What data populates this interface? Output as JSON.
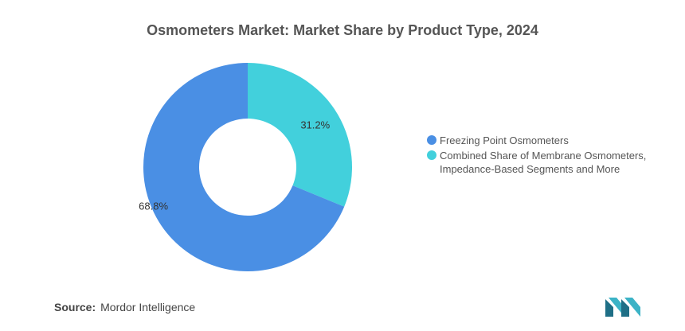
{
  "chart_data": {
    "type": "pie",
    "donut": true,
    "title": "Osmometers Market: Market Share by Product Type, 2024",
    "categories": [
      "Freezing Point Osmometers",
      "Combined Share of Membrane Osmometers, Impedance-Based Segments and More"
    ],
    "values": [
      68.8,
      31.2
    ],
    "value_labels": [
      "68.8%",
      "31.2%"
    ],
    "colors": [
      "#4a8fe4",
      "#42d0dc"
    ],
    "legend_placement": "right"
  },
  "legend": {
    "items": [
      {
        "label": "Freezing Point Osmometers",
        "color": "#4a8fe4"
      },
      {
        "label": "Combined Share of Membrane Osmometers, Impedance-Based Segments and More",
        "color": "#42d0dc"
      }
    ]
  },
  "footer": {
    "source_label": "Source:",
    "source_value": "Mordor Intelligence",
    "logo_icon": "mordor-intelligence-logo-icon"
  }
}
